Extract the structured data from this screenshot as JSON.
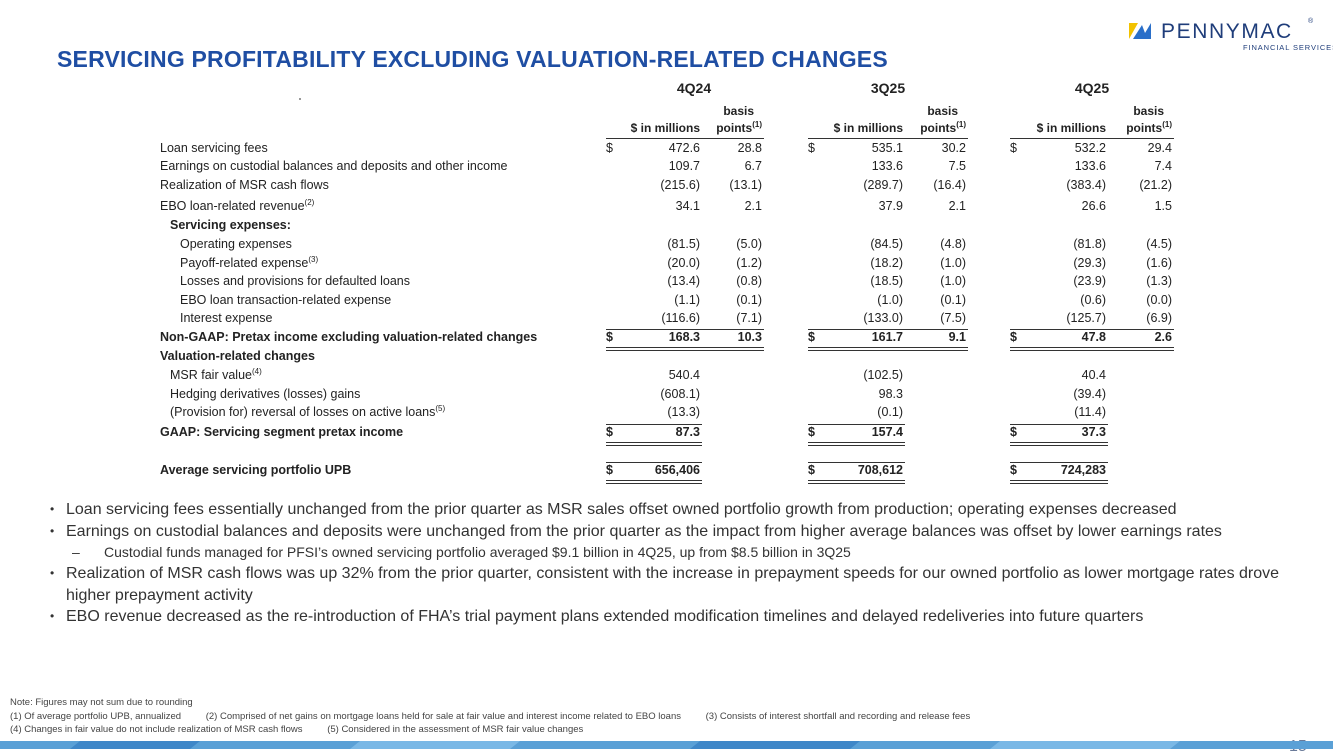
{
  "header": {
    "title": "SERVICING PROFITABILITY EXCLUDING VALUATION-RELATED CHANGES",
    "logo_text": "PENNYMAC",
    "logo_sub": "FINANCIAL SERVICES",
    "logo_reg": "®"
  },
  "colors": {
    "title": "#1f4ea3",
    "logo": "#1f3d7a",
    "logo_yellow": "#f2c200",
    "logo_blue": "#2a6fc9"
  },
  "table": {
    "periods": [
      "4Q24",
      "3Q25",
      "4Q25"
    ],
    "col_dollar": "$ in millions",
    "col_bps_1": "basis",
    "col_bps_2": "points",
    "col_bps_note": "(1)",
    "currency": "$",
    "rows": [
      {
        "label": "Loan servicing fees",
        "vals": [
          "472.6",
          "28.8",
          "535.1",
          "30.2",
          "532.2",
          "29.4"
        ]
      },
      {
        "label": "Earnings on custodial balances and deposits and other income",
        "vals": [
          "109.7",
          "6.7",
          "133.6",
          "7.5",
          "133.6",
          "7.4"
        ]
      },
      {
        "label": "Realization of MSR cash flows",
        "vals": [
          "(215.6)",
          "(13.1)",
          "(289.7)",
          "(16.4)",
          "(383.4)",
          "(21.2)"
        ]
      },
      {
        "label": "EBO loan-related revenue",
        "note": "(2)",
        "vals": [
          "34.1",
          "2.1",
          "37.9",
          "2.1",
          "26.6",
          "1.5"
        ]
      },
      {
        "label": "Servicing expenses:"
      },
      {
        "label": "Operating expenses",
        "vals": [
          "(81.5)",
          "(5.0)",
          "(84.5)",
          "(4.8)",
          "(81.8)",
          "(4.5)"
        ]
      },
      {
        "label": "Payoff-related expense",
        "note": "(3)",
        "vals": [
          "(20.0)",
          "(1.2)",
          "(18.2)",
          "(1.0)",
          "(29.3)",
          "(1.6)"
        ]
      },
      {
        "label": "Losses and provisions for defaulted loans",
        "vals": [
          "(13.4)",
          "(0.8)",
          "(18.5)",
          "(1.0)",
          "(23.9)",
          "(1.3)"
        ]
      },
      {
        "label": "EBO loan transaction-related expense",
        "vals": [
          "(1.1)",
          "(0.1)",
          "(1.0)",
          "(0.1)",
          "(0.6)",
          "(0.0)"
        ]
      },
      {
        "label": "Interest expense",
        "vals": [
          "(116.6)",
          "(7.1)",
          "(133.0)",
          "(7.5)",
          "(125.7)",
          "(6.9)"
        ]
      },
      {
        "label": "Non-GAAP: Pretax income excluding valuation-related changes",
        "vals": [
          "168.3",
          "10.3",
          "161.7",
          "9.1",
          "47.8",
          "2.6"
        ]
      },
      {
        "label": "Valuation-related changes"
      },
      {
        "label": "MSR fair value",
        "note": "(4)",
        "vals": [
          "540.4",
          "",
          "(102.5)",
          "",
          "40.4",
          ""
        ]
      },
      {
        "label": "Hedging derivatives (losses) gains",
        "vals": [
          "(608.1)",
          "",
          "98.3",
          "",
          "(39.4)",
          ""
        ]
      },
      {
        "label": "(Provision for) reversal of losses on active loans",
        "note": "(5)",
        "vals": [
          "(13.3)",
          "",
          "(0.1)",
          "",
          "(11.4)",
          ""
        ]
      },
      {
        "label": "GAAP: Servicing segment pretax income",
        "vals": [
          "87.3",
          "",
          "157.4",
          "",
          "37.3",
          ""
        ]
      },
      {
        "label": "Average servicing portfolio UPB",
        "vals": [
          "656,406",
          "",
          "708,612",
          "",
          "724,283",
          ""
        ]
      }
    ]
  },
  "bullets": [
    "Loan servicing fees essentially unchanged from the prior quarter as MSR sales offset owned portfolio growth from production; operating expenses decreased",
    "Earnings on custodial balances and deposits were unchanged from the prior quarter as the impact from higher average balances was offset by lower earnings rates",
    "Custodial funds managed for PFSI’s owned servicing portfolio averaged $9.1 billion in 4Q25, up from $8.5 billion in 3Q25",
    "Realization of MSR cash flows was up 32% from the prior quarter, consistent with the increase in prepayment speeds for our owned portfolio as lower mortgage rates drove higher prepayment activity",
    "EBO revenue decreased as the re-introduction of FHA’s trial payment plans extended modification timelines and delayed redeliveries into future quarters"
  ],
  "bullet_mark": "•",
  "sub_mark": "–",
  "notes": {
    "line1": "Note: Figures may not sum due to rounding",
    "n1": "(1) Of average portfolio UPB, annualized",
    "n2": "(2) Comprised of net gains on mortgage loans held for sale at fair value and interest income related to EBO loans",
    "n3": "(3) Consists of interest shortfall and recording and release fees",
    "n4": "(4) Changes in fair value do not include realization of MSR cash flows",
    "n5": "(5) Considered in the assessment of MSR fair value changes"
  },
  "page_number": "15"
}
